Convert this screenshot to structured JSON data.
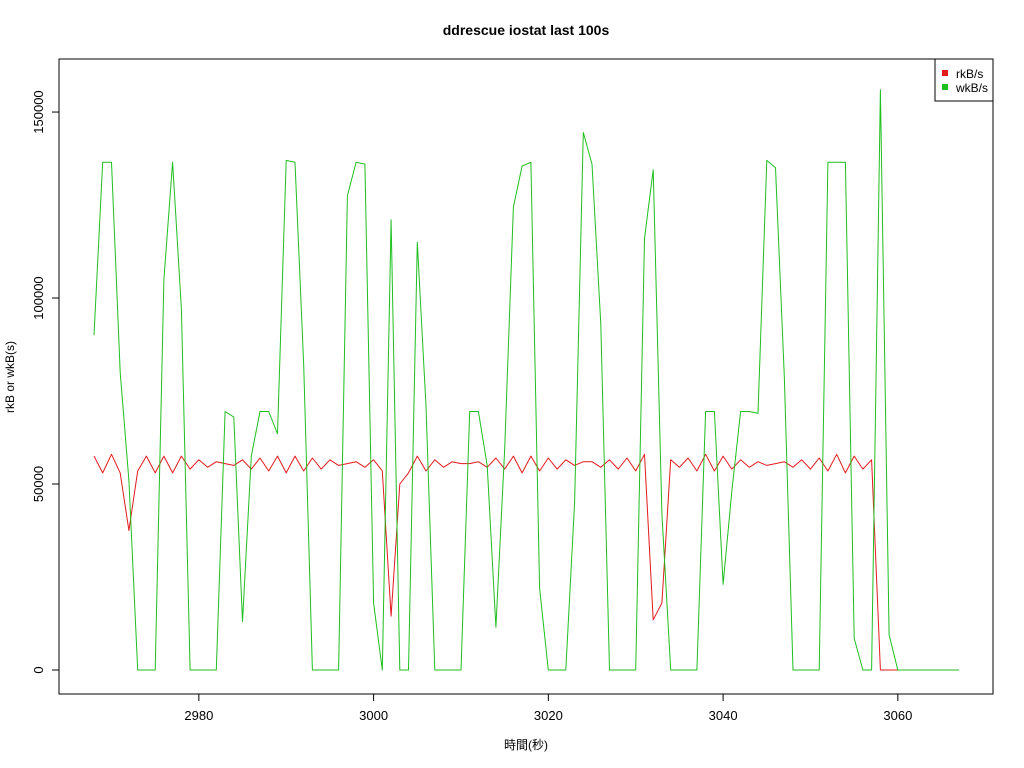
{
  "colors": {
    "rkB": "#e31a1c",
    "wkB": "#1fbf1f",
    "axis": "#000000",
    "background": "#ffffff"
  },
  "chart_data": {
    "type": "line",
    "title": "ddrescue iostat last 100s",
    "xlabel": "時間(秒)",
    "ylabel": "rkB or wkB(s)",
    "xlim": [
      2968,
      3067
    ],
    "ylim": [
      0,
      157000
    ],
    "x_ticks": [
      2980,
      3000,
      3020,
      3040,
      3060
    ],
    "x_tick_labels": [
      "2980",
      "3000",
      "3020",
      "3040",
      "3060"
    ],
    "y_ticks": [
      0,
      50000,
      100000,
      150000
    ],
    "y_tick_labels": [
      "0",
      "50000",
      "100000",
      "150000"
    ],
    "grid": false,
    "legend_position": "top-right",
    "x": [
      2968,
      2969,
      2970,
      2971,
      2972,
      2973,
      2974,
      2975,
      2976,
      2977,
      2978,
      2979,
      2980,
      2981,
      2982,
      2983,
      2984,
      2985,
      2986,
      2987,
      2988,
      2989,
      2990,
      2991,
      2992,
      2993,
      2994,
      2995,
      2996,
      2997,
      2998,
      2999,
      3000,
      3001,
      3002,
      3003,
      3004,
      3005,
      3006,
      3007,
      3008,
      3009,
      3010,
      3011,
      3012,
      3013,
      3014,
      3015,
      3016,
      3017,
      3018,
      3019,
      3020,
      3021,
      3022,
      3023,
      3024,
      3025,
      3026,
      3027,
      3028,
      3029,
      3030,
      3031,
      3032,
      3033,
      3034,
      3035,
      3036,
      3037,
      3038,
      3039,
      3040,
      3041,
      3042,
      3043,
      3044,
      3045,
      3046,
      3047,
      3048,
      3049,
      3050,
      3051,
      3052,
      3053,
      3054,
      3055,
      3056,
      3057,
      3058,
      3059,
      3060,
      3061,
      3062,
      3063,
      3064,
      3065,
      3066,
      3067
    ],
    "series": [
      {
        "name": "rkB/s",
        "values": [
          57500,
          53000,
          58000,
          53000,
          37500,
          53500,
          57500,
          53000,
          57500,
          53000,
          57500,
          54000,
          56500,
          54500,
          56000,
          55500,
          55000,
          56500,
          54000,
          57000,
          53500,
          57500,
          53000,
          57500,
          53500,
          57000,
          54000,
          56500,
          55000,
          55500,
          56000,
          54500,
          56500,
          53500,
          14500,
          50000,
          53000,
          57500,
          53500,
          56500,
          54500,
          56000,
          55500,
          55500,
          56000,
          54500,
          57000,
          54000,
          57500,
          53000,
          57500,
          53500,
          57000,
          54000,
          56500,
          55000,
          56000,
          56000,
          54500,
          56500,
          54000,
          57000,
          53500,
          58000,
          13500,
          18000,
          56500,
          54500,
          57000,
          53500,
          58000,
          53500,
          57500,
          54000,
          56500,
          54500,
          56000,
          55000,
          55500,
          56000,
          54500,
          56500,
          54000,
          57000,
          53500,
          58000,
          53000,
          57500,
          54000,
          56500,
          0,
          0,
          0,
          0,
          0,
          0,
          0,
          0,
          0,
          0
        ]
      },
      {
        "name": "wkB/s",
        "values": [
          90000,
          136500,
          136500,
          80000,
          51000,
          0,
          0,
          0,
          105000,
          136500,
          97000,
          0,
          0,
          0,
          0,
          69500,
          68000,
          13000,
          57500,
          69500,
          69500,
          63500,
          137000,
          136500,
          82000,
          0,
          0,
          0,
          0,
          127500,
          136500,
          136000,
          18000,
          0,
          121000,
          0,
          0,
          115000,
          71000,
          0,
          0,
          0,
          0,
          69500,
          69500,
          55000,
          11500,
          59500,
          124500,
          135500,
          136500,
          22000,
          0,
          0,
          0,
          45000,
          144500,
          136000,
          93000,
          0,
          0,
          0,
          0,
          116000,
          134500,
          42000,
          0,
          0,
          0,
          0,
          69500,
          69500,
          23000,
          48000,
          69500,
          69500,
          69000,
          137000,
          135000,
          79000,
          0,
          0,
          0,
          0,
          136500,
          136500,
          136500,
          8500,
          0,
          0,
          156000,
          9500,
          0,
          0,
          0,
          0,
          0,
          0,
          0,
          0
        ]
      }
    ]
  }
}
